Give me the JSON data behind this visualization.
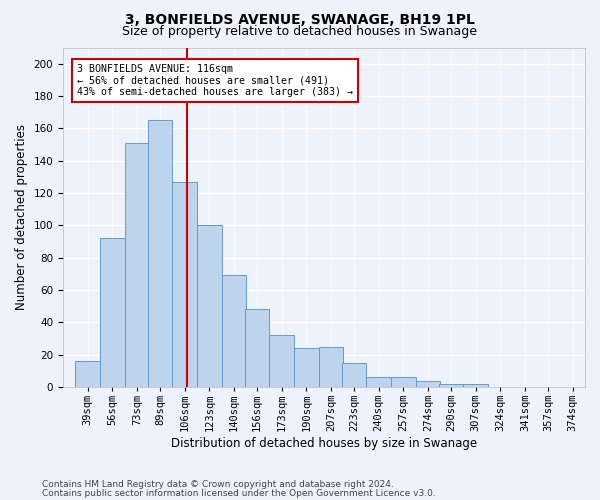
{
  "title": "3, BONFIELDS AVENUE, SWANAGE, BH19 1PL",
  "subtitle": "Size of property relative to detached houses in Swanage",
  "xlabel": "Distribution of detached houses by size in Swanage",
  "ylabel": "Number of detached properties",
  "bar_values": [
    16,
    92,
    151,
    165,
    127,
    100,
    69,
    48,
    32,
    24,
    25,
    15,
    6,
    6,
    4,
    2,
    2,
    0,
    0,
    0
  ],
  "categories": [
    "39sqm",
    "56sqm",
    "73sqm",
    "89sqm",
    "106sqm",
    "123sqm",
    "140sqm",
    "156sqm",
    "173sqm",
    "190sqm",
    "207sqm",
    "223sqm",
    "240sqm",
    "257sqm",
    "274sqm",
    "290sqm",
    "307sqm",
    "324sqm",
    "341sqm",
    "357sqm",
    "374sqm"
  ],
  "bar_left_edges": [
    39,
    56,
    73,
    89,
    106,
    123,
    140,
    156,
    173,
    190,
    207,
    223,
    240,
    257,
    274,
    290,
    307,
    324,
    341,
    357
  ],
  "bin_width": 17,
  "bar_color": "#bed3ec",
  "bar_edge_color": "#6699cc",
  "vline_x": 116,
  "vline_color": "#cc0000",
  "ylim": [
    0,
    210
  ],
  "yticks": [
    0,
    20,
    40,
    60,
    80,
    100,
    120,
    140,
    160,
    180,
    200
  ],
  "annotation_title": "3 BONFIELDS AVENUE: 116sqm",
  "annotation_line1": "← 56% of detached houses are smaller (491)",
  "annotation_line2": "43% of semi-detached houses are larger (383) →",
  "annotation_box_color": "#ffffff",
  "annotation_box_edge": "#cc0000",
  "footer1": "Contains HM Land Registry data © Crown copyright and database right 2024.",
  "footer2": "Contains public sector information licensed under the Open Government Licence v3.0.",
  "bg_color": "#eef2fb",
  "plot_bg_color": "#eef2fb",
  "grid_color": "#ffffff",
  "title_fontsize": 10,
  "subtitle_fontsize": 9,
  "axis_label_fontsize": 8.5,
  "tick_fontsize": 7.5,
  "footer_fontsize": 6.5
}
